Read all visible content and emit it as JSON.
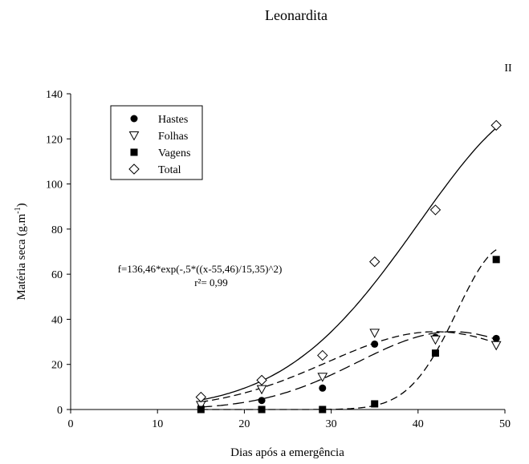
{
  "chart_data": {
    "type": "scatter",
    "title": "Leonardita",
    "panel_label": "II",
    "xlabel": "Dias após a emergência",
    "ylabel_main": "Matéria seca (g.m",
    "ylabel_sup": "-1",
    "ylabel_close": ")",
    "xlim": [
      0,
      50
    ],
    "ylim": [
      0,
      140
    ],
    "x_ticks": [
      0,
      10,
      20,
      30,
      40,
      50
    ],
    "y_ticks": [
      0,
      20,
      40,
      60,
      80,
      100,
      120,
      140
    ],
    "grid": false,
    "legend_position": "top-left",
    "x": [
      15,
      22,
      29,
      35,
      42,
      49
    ],
    "series": [
      {
        "name": "Hastes",
        "marker": "filled-circle",
        "values": [
          1,
          4,
          9.5,
          29,
          32,
          31.5
        ]
      },
      {
        "name": "Folhas",
        "marker": "open-triangle-down",
        "values": [
          2,
          9,
          14.5,
          34,
          31,
          28.5
        ]
      },
      {
        "name": "Vagens",
        "marker": "filled-square",
        "values": [
          0,
          0,
          0,
          2.5,
          25,
          66.5
        ]
      },
      {
        "name": "Total",
        "marker": "open-diamond",
        "values": [
          5.5,
          13,
          24,
          65.5,
          88.5,
          126
        ]
      }
    ],
    "fits": [
      {
        "series": "Total",
        "style": "solid",
        "a": 136.46,
        "x0": 55.46,
        "b": 15.35
      },
      {
        "series": "Hastes",
        "style": "long-dash",
        "a": 34.5,
        "x0": 44,
        "b": 11
      },
      {
        "series": "Folhas",
        "style": "dash",
        "a": 34.5,
        "x0": 42,
        "b": 12.5
      },
      {
        "series": "Vagens",
        "style": "dash",
        "a": 72,
        "x0": 50,
        "b": 5.5
      }
    ],
    "annotation": {
      "equation": "f=136,46*exp(-,5*((x-55,46)/15,35)^2)",
      "r2": "r²= 0,99"
    }
  }
}
